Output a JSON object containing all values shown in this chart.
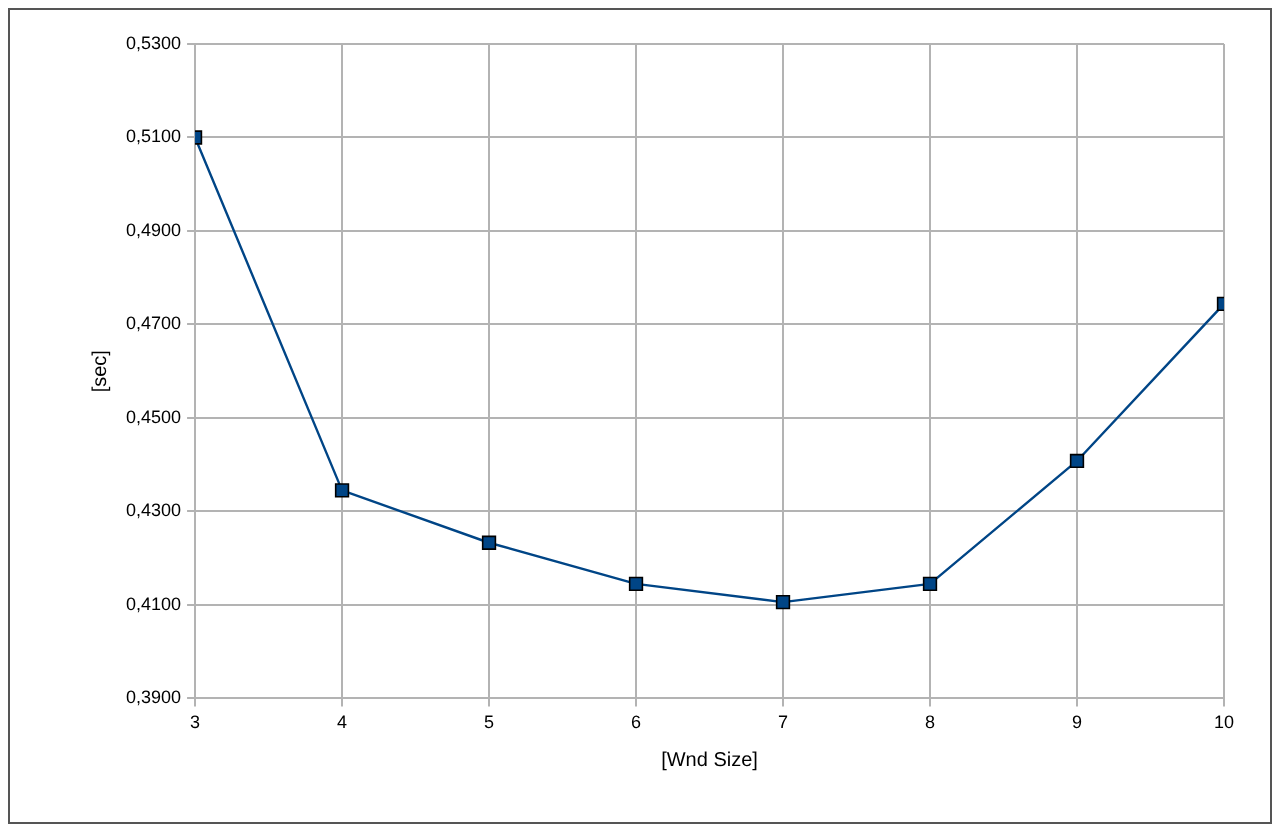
{
  "chart_data": {
    "type": "line",
    "xlabel": "[Wnd Size]",
    "ylabel": "[sec]",
    "x": [
      3,
      4,
      5,
      6,
      7,
      8,
      9,
      10
    ],
    "series": [
      {
        "color": "#004586",
        "values": [
          0.51,
          0.4345,
          0.4233,
          0.4145,
          0.4106,
          0.4145,
          0.4408,
          0.4744
        ]
      }
    ],
    "xlim": [
      3,
      10
    ],
    "xticks": [
      3,
      4,
      5,
      6,
      7,
      8,
      9,
      10
    ],
    "ylim": [
      0.39,
      0.53
    ],
    "yticks": [
      {
        "value": 0.39,
        "label": "0,3900"
      },
      {
        "value": 0.41,
        "label": "0,4100"
      },
      {
        "value": 0.43,
        "label": "0,4300"
      },
      {
        "value": 0.45,
        "label": "0,4500"
      },
      {
        "value": 0.47,
        "label": "0,4700"
      },
      {
        "value": 0.49,
        "label": "0,4900"
      },
      {
        "value": 0.51,
        "label": "0,5100"
      },
      {
        "value": 0.53,
        "label": "0,5300"
      }
    ],
    "grid": true,
    "marker": "square",
    "line_style": "solid",
    "legend": false
  }
}
